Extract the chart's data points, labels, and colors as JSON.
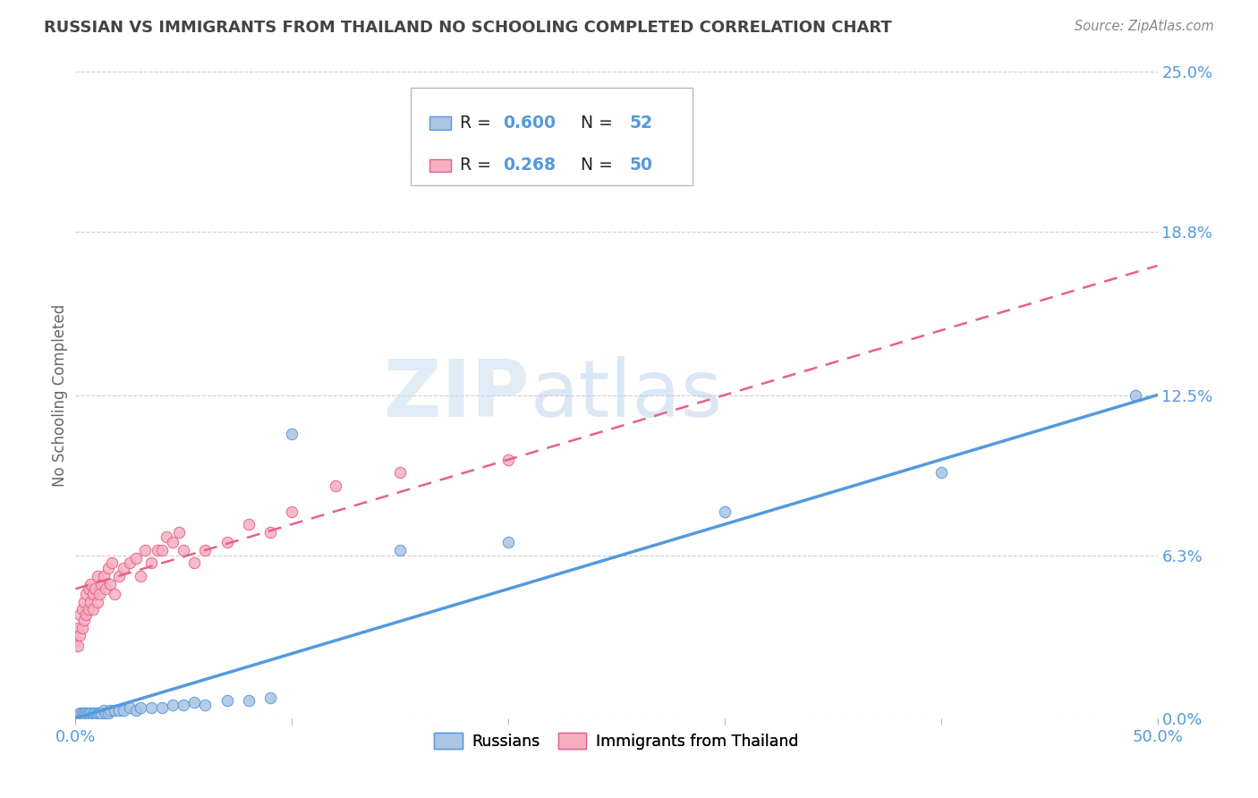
{
  "title": "RUSSIAN VS IMMIGRANTS FROM THAILAND NO SCHOOLING COMPLETED CORRELATION CHART",
  "source": "Source: ZipAtlas.com",
  "ylabel": "No Schooling Completed",
  "xlim": [
    0.0,
    0.5
  ],
  "ylim": [
    0.0,
    0.25
  ],
  "yticks": [
    0.0,
    0.063,
    0.125,
    0.188,
    0.25
  ],
  "ytick_labels": [
    "0.0%",
    "6.3%",
    "12.5%",
    "18.8%",
    "25.0%"
  ],
  "xticks": [
    0.0,
    0.5
  ],
  "xtick_labels": [
    "0.0%",
    "50.0%"
  ],
  "watermark_zip": "ZIP",
  "watermark_atlas": "atlas",
  "russian_R": "0.600",
  "russian_N": "52",
  "thai_R": "0.268",
  "thai_N": "50",
  "russian_color": "#aac4e2",
  "thai_color": "#f5afc0",
  "russian_line_color": "#5599dd",
  "thai_line_color": "#e8608a",
  "grid_color": "#cccccc",
  "title_color": "#444444",
  "axis_label_color": "#5599dd",
  "right_label_color": "#5599dd",
  "background_color": "#ffffff",
  "russians_scatter_x": [
    0.0,
    0.001,
    0.001,
    0.001,
    0.002,
    0.002,
    0.002,
    0.003,
    0.003,
    0.003,
    0.004,
    0.004,
    0.004,
    0.005,
    0.005,
    0.005,
    0.006,
    0.006,
    0.007,
    0.007,
    0.008,
    0.008,
    0.009,
    0.01,
    0.01,
    0.011,
    0.012,
    0.013,
    0.014,
    0.015,
    0.016,
    0.018,
    0.02,
    0.022,
    0.025,
    0.028,
    0.03,
    0.035,
    0.04,
    0.045,
    0.05,
    0.055,
    0.06,
    0.07,
    0.08,
    0.09,
    0.1,
    0.15,
    0.2,
    0.3,
    0.4,
    0.49
  ],
  "russians_scatter_y": [
    0.0,
    0.0,
    0.001,
    0.001,
    0.0,
    0.001,
    0.002,
    0.0,
    0.001,
    0.002,
    0.001,
    0.002,
    0.0,
    0.001,
    0.002,
    0.001,
    0.001,
    0.002,
    0.001,
    0.002,
    0.001,
    0.002,
    0.002,
    0.001,
    0.002,
    0.002,
    0.002,
    0.003,
    0.002,
    0.002,
    0.003,
    0.003,
    0.003,
    0.003,
    0.004,
    0.003,
    0.004,
    0.004,
    0.004,
    0.005,
    0.005,
    0.006,
    0.005,
    0.007,
    0.007,
    0.008,
    0.11,
    0.065,
    0.068,
    0.08,
    0.095,
    0.125
  ],
  "thai_scatter_x": [
    0.0,
    0.001,
    0.001,
    0.002,
    0.002,
    0.003,
    0.003,
    0.004,
    0.004,
    0.005,
    0.005,
    0.006,
    0.006,
    0.007,
    0.007,
    0.008,
    0.008,
    0.009,
    0.01,
    0.01,
    0.011,
    0.012,
    0.013,
    0.014,
    0.015,
    0.016,
    0.017,
    0.018,
    0.02,
    0.022,
    0.025,
    0.028,
    0.03,
    0.032,
    0.035,
    0.038,
    0.04,
    0.042,
    0.045,
    0.048,
    0.05,
    0.055,
    0.06,
    0.07,
    0.08,
    0.09,
    0.1,
    0.12,
    0.15,
    0.2
  ],
  "thai_scatter_y": [
    0.03,
    0.028,
    0.035,
    0.032,
    0.04,
    0.035,
    0.042,
    0.038,
    0.045,
    0.04,
    0.048,
    0.042,
    0.05,
    0.045,
    0.052,
    0.048,
    0.042,
    0.05,
    0.045,
    0.055,
    0.048,
    0.052,
    0.055,
    0.05,
    0.058,
    0.052,
    0.06,
    0.048,
    0.055,
    0.058,
    0.06,
    0.062,
    0.055,
    0.065,
    0.06,
    0.065,
    0.065,
    0.07,
    0.068,
    0.072,
    0.065,
    0.06,
    0.065,
    0.068,
    0.075,
    0.072,
    0.08,
    0.09,
    0.095,
    0.1
  ],
  "russian_line_x0": 0.0,
  "russian_line_y0": 0.0,
  "russian_line_x1": 0.5,
  "russian_line_y1": 0.125,
  "thai_line_x0": 0.0,
  "thai_line_y0": 0.05,
  "thai_line_x1": 0.5,
  "thai_line_y1": 0.175
}
